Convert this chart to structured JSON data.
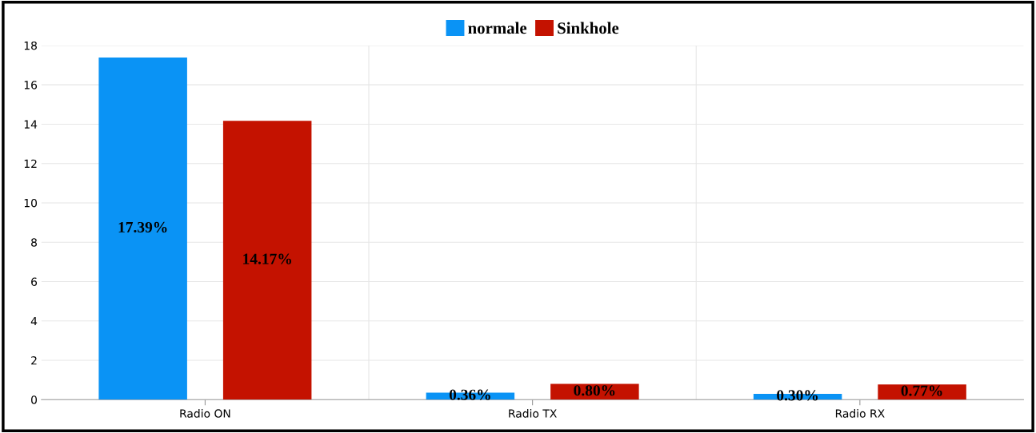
{
  "chart_data": {
    "type": "bar",
    "categories": [
      "Radio ON",
      "Radio TX",
      "Radio RX"
    ],
    "series": [
      {
        "name": "normale",
        "color": "#0a93f5",
        "values": [
          17.39,
          0.36,
          0.3
        ],
        "value_labels": [
          "17.39%",
          "0.36%",
          "0.30%"
        ]
      },
      {
        "name": "Sinkhole",
        "color": "#c41200",
        "values": [
          14.17,
          0.8,
          0.77
        ],
        "value_labels": [
          "14.17%",
          "0.80%",
          "0.77%"
        ]
      }
    ],
    "ylim": [
      0,
      18
    ],
    "yticks": [
      0,
      2,
      4,
      6,
      8,
      10,
      12,
      14,
      16,
      18
    ],
    "grid": true,
    "legend": "top"
  }
}
